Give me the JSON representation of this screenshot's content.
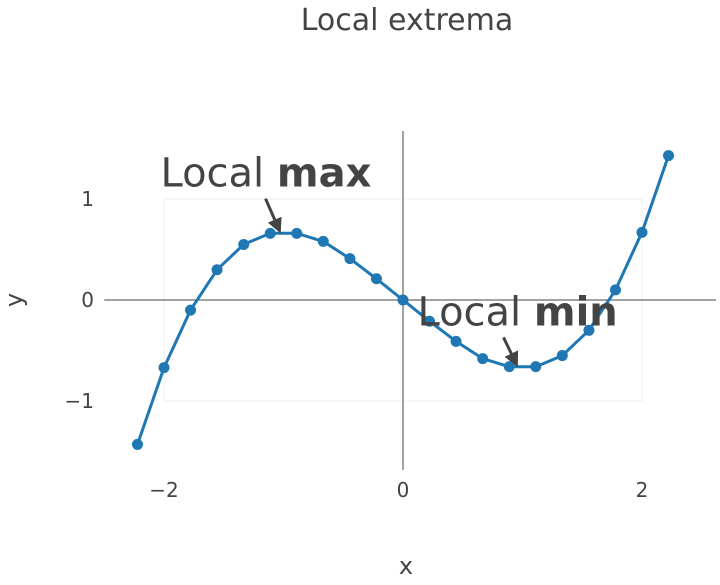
{
  "chart_data": {
    "type": "line",
    "title": "Local extrema",
    "xlabel": "x",
    "ylabel": "y",
    "xlim": [
      -2.5,
      2.5
    ],
    "ylim": [
      -1.6,
      1.6
    ],
    "x_ticks": [
      -2,
      0,
      2
    ],
    "x_tick_labels": [
      "−2",
      "0",
      "2"
    ],
    "y_ticks": [
      -1,
      0,
      1
    ],
    "y_tick_labels": [
      "−1",
      "0",
      "1"
    ],
    "grid": false,
    "zero_lines": true,
    "series": [
      {
        "color": "#1f77b4",
        "mode": "lines+markers",
        "x": [
          -2.222,
          -2.0,
          -1.778,
          -1.556,
          -1.333,
          -1.111,
          -0.889,
          -0.667,
          -0.444,
          -0.222,
          0.0,
          0.222,
          0.444,
          0.667,
          0.889,
          1.111,
          1.333,
          1.556,
          1.778,
          2.0,
          2.222
        ],
        "y": [
          -1.43,
          -0.67,
          -0.1,
          0.3,
          0.55,
          0.66,
          0.66,
          0.58,
          0.41,
          0.21,
          0.0,
          -0.21,
          -0.41,
          -0.58,
          -0.66,
          -0.66,
          -0.55,
          -0.3,
          0.1,
          0.67,
          1.43
        ]
      }
    ],
    "annotations": [
      {
        "prefix": "Local ",
        "bold": "max",
        "x": -1.0,
        "y": 0.667
      },
      {
        "prefix": "Local ",
        "bold": "min",
        "x": 1.0,
        "y": -0.667
      }
    ]
  }
}
